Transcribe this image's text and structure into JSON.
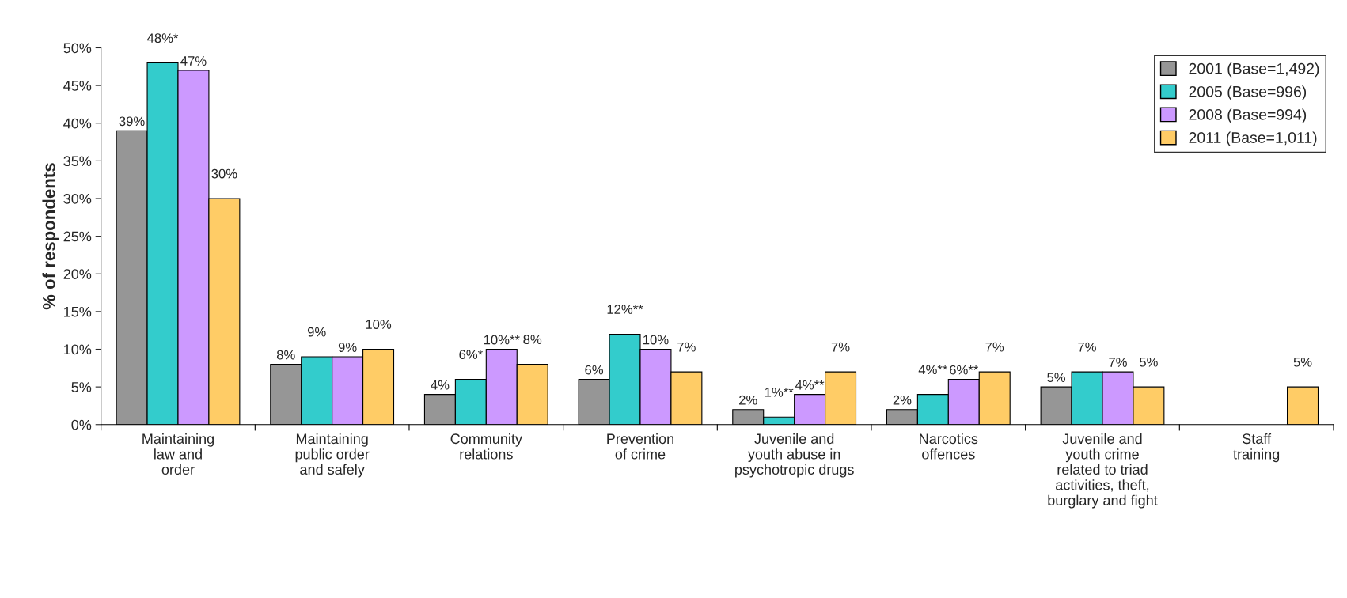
{
  "chart_data": {
    "type": "bar",
    "ylabel": "% of respondents",
    "categories": [
      "Maintaining\nlaw and\norder",
      "Maintaining\npublic order\nand safely",
      "Community\nrelations",
      "Prevention\nof crime",
      "Juvenile and\nyouth abuse in\npsychotropic drugs",
      "Narcotics\noffences",
      "Juvenile and\nyouth crime\nrelated to triad\nactivities, theft,\nburglary and fight",
      "Staff\ntraining"
    ],
    "series": [
      {
        "name": "2001 (Base=1,492)",
        "color": "#969696",
        "values": [
          39,
          8,
          4,
          6,
          2,
          2,
          5,
          null
        ],
        "value_labels": [
          "39%",
          "8%",
          "4%",
          "6%",
          "2%",
          "2%",
          "5%",
          null
        ]
      },
      {
        "name": "2005 (Base=996)",
        "color": "#33cccc",
        "values": [
          48,
          9,
          6,
          12,
          1,
          4,
          7,
          null
        ],
        "value_labels": [
          "48%*",
          "9%",
          "6%*",
          "12%**",
          "1%**",
          "4%**",
          "7%",
          null
        ]
      },
      {
        "name": "2008 (Base=994)",
        "color": "#cc99ff",
        "values": [
          47,
          9,
          10,
          10,
          4,
          6,
          7,
          null
        ],
        "value_labels": [
          "47%",
          "9%",
          "10%**",
          "10%",
          "4%**",
          "6%**",
          "7%",
          null
        ]
      },
      {
        "name": "2011 (Base=1,011)",
        "color": "#ffcc66",
        "values": [
          30,
          10,
          8,
          7,
          7,
          7,
          5,
          5
        ],
        "value_labels": [
          "30%",
          "10%",
          "8%",
          "7%",
          "7%",
          "7%",
          "5%",
          "5%"
        ]
      }
    ],
    "ylim": [
      0,
      50
    ],
    "yticks": [
      {
        "value": 0,
        "label": "0%"
      },
      {
        "value": 5,
        "label": "5%"
      },
      {
        "value": 10,
        "label": "10%"
      },
      {
        "value": 15,
        "label": "15%"
      },
      {
        "value": 20,
        "label": "20%"
      },
      {
        "value": 25,
        "label": "25%"
      },
      {
        "value": 30,
        "label": "30%"
      },
      {
        "value": 35,
        "label": "35%"
      },
      {
        "value": 40,
        "label": "40%"
      },
      {
        "value": 45,
        "label": "45%"
      },
      {
        "value": 50,
        "label": "50%"
      }
    ],
    "grid": false,
    "legend": "top right"
  }
}
